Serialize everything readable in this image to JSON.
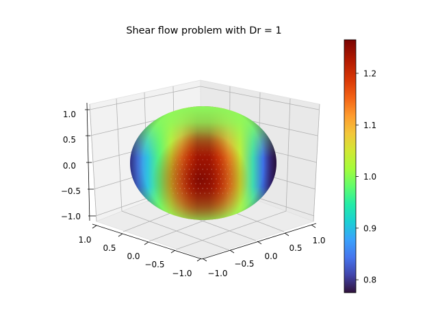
{
  "chart_data": {
    "type": "surface3d",
    "title": "Shear flow problem with Dr = 1",
    "surface": {
      "shape": "sphere",
      "radius": 1,
      "colormap": "turbo",
      "max_region": "centre of the sphere facing the viewer"
    },
    "axes": {
      "x": {
        "ticks": [
          "1.0",
          "0.5",
          "0.0",
          "−0.5",
          "−1.0"
        ],
        "range": [
          -1.0,
          1.0
        ]
      },
      "y": {
        "ticks": [
          "−1.0",
          "−0.5",
          "0.0",
          "0.5",
          "1.0"
        ],
        "range": [
          -1.0,
          1.0
        ]
      },
      "z": {
        "ticks": [
          "1.0",
          "0.5",
          "0.0",
          "−0.5",
          "−1.0"
        ],
        "range": [
          -1.0,
          1.0
        ]
      },
      "grid": true
    },
    "colorbar": {
      "min": 0.775,
      "max": 1.265,
      "ticks": [
        {
          "value": 0.8,
          "label": "0.8"
        },
        {
          "value": 0.9,
          "label": "0.9"
        },
        {
          "value": 1.0,
          "label": "1.0"
        },
        {
          "value": 1.1,
          "label": "1.1"
        },
        {
          "value": 1.2,
          "label": "1.2"
        }
      ],
      "placement": "right"
    }
  }
}
